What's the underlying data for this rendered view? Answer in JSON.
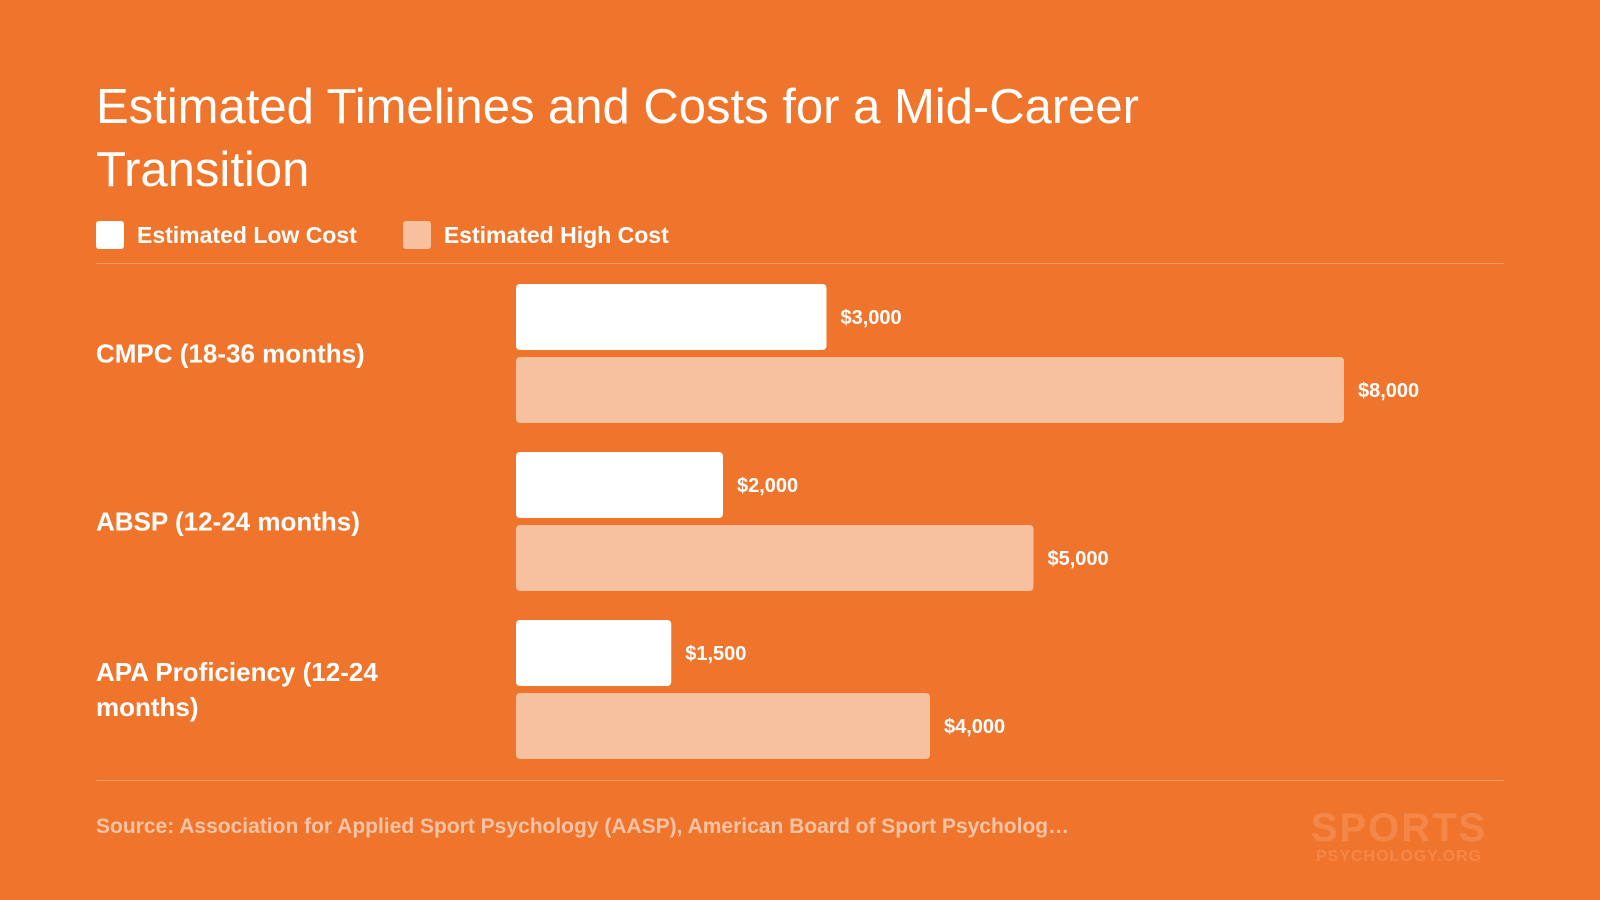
{
  "chart_data": {
    "type": "bar",
    "orientation": "horizontal",
    "title": "Estimated Timelines and Costs for a Mid-Career Transition",
    "categories": [
      "CMPC (18-36 months)",
      "ABSP (12-24 months)",
      "APA Proficiency (12-24 months)"
    ],
    "series": [
      {
        "name": "Estimated Low Cost",
        "color": "#ffffff",
        "values": [
          3000,
          2000,
          1500
        ],
        "labels": [
          "$3,000",
          "$2,000",
          "$1,500"
        ]
      },
      {
        "name": "Estimated High Cost",
        "color": "#f7c09e",
        "values": [
          8000,
          5000,
          4000
        ],
        "labels": [
          "$8,000",
          "$5,000",
          "$4,000"
        ]
      }
    ],
    "xlim": [
      0,
      8000
    ],
    "grid": false,
    "legend_position": "top-left"
  },
  "source": "Source: Association for Applied Sport Psychology (AASP), American Board of Sport Psycholog…",
  "logo": {
    "main": "SPORTS",
    "sub": "PSYCHOLOGY.ORG"
  },
  "colors": {
    "background": "#f0752c",
    "low": "#ffffff",
    "high": "#f7c09e"
  }
}
